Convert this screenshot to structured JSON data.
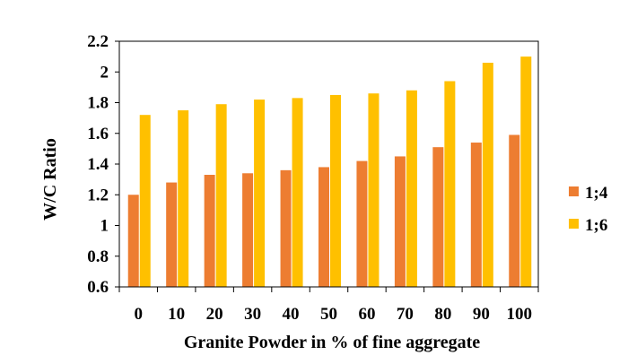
{
  "chart_data": {
    "type": "bar",
    "title": "",
    "xlabel": "Granite Powder in  % of fine aggregate",
    "ylabel": "W/C  Ratio",
    "categories": [
      "0",
      "10",
      "20",
      "30",
      "40",
      "50",
      "60",
      "70",
      "80",
      "90",
      "100"
    ],
    "series": [
      {
        "name": "1;4",
        "color": "#ED7D31",
        "values": [
          1.2,
          1.28,
          1.33,
          1.34,
          1.36,
          1.38,
          1.42,
          1.45,
          1.51,
          1.54,
          1.59
        ]
      },
      {
        "name": "1;6",
        "color": "#FFC000",
        "values": [
          1.72,
          1.75,
          1.79,
          1.82,
          1.83,
          1.85,
          1.86,
          1.88,
          1.94,
          2.06,
          2.1
        ]
      }
    ],
    "ylim": [
      0.6,
      2.2
    ],
    "yticks": [
      "0.6",
      "0.8",
      "1",
      "1.2",
      "1.4",
      "1.6",
      "1.8",
      "2",
      "2.2"
    ],
    "grid": false,
    "legend": "right"
  }
}
